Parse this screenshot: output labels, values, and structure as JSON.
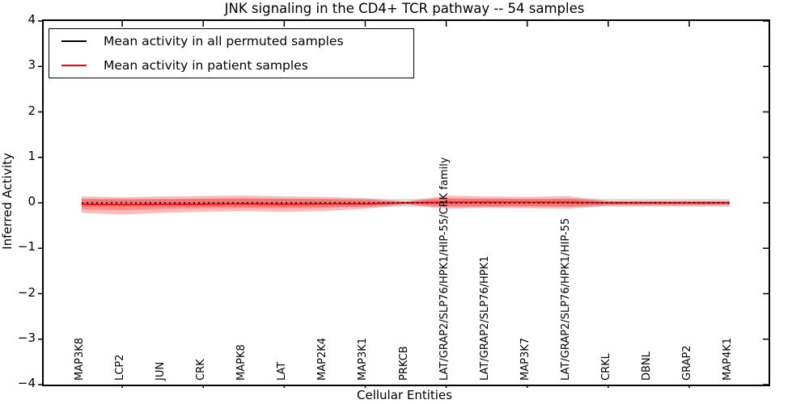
{
  "legend": {
    "position": "upper left",
    "items": [
      {
        "label": "Mean activity in all permuted samples",
        "color": "#000000"
      },
      {
        "label": "Mean activity in patient samples",
        "color": "#ff0000"
      }
    ]
  },
  "chart_data": {
    "type": "line",
    "title": "JNK signaling in the CD4+ TCR pathway -- 54 samples",
    "xlabel": "Cellular Entities",
    "ylabel": "Inferred Activity",
    "ylim": [
      -4,
      4
    ],
    "yticks": [
      4,
      3,
      2,
      1,
      0,
      -1,
      -2,
      -3,
      -4
    ],
    "grid": false,
    "legend_position": "upper left",
    "categories": [
      "MAP3K8",
      "LCP2",
      "JUN",
      "CRK",
      "MAPK8",
      "LAT",
      "MAP2K4",
      "MAP3K1",
      "PRKCB",
      "LAT/GRAP2/SLP76/HPK1/HIP-55/CRK family",
      "LAT/GRAP2/SLP76/HPK1",
      "MAP3K7",
      "LAT/GRAP2/SLP76/HPK1/HIP-55",
      "CRKL",
      "DBNL",
      "GRAP2",
      "MAP4K1"
    ],
    "series": [
      {
        "name": "Mean activity in all permuted samples",
        "color": "#000000",
        "style": "dotted",
        "values": [
          0,
          0,
          0,
          0,
          0,
          0,
          0,
          0,
          0,
          0,
          0,
          0,
          0,
          0,
          0,
          0,
          0
        ]
      },
      {
        "name": "Mean activity in patient samples",
        "color": "#ff0000",
        "style": "solid",
        "values": [
          -0.03,
          -0.04,
          -0.03,
          -0.03,
          -0.02,
          -0.03,
          -0.02,
          -0.02,
          0.0,
          0.01,
          0.01,
          0.01,
          0.01,
          0.0,
          0.0,
          0.0,
          0.0
        ]
      }
    ],
    "bands": [
      {
        "name": "permuted-samples-band",
        "color": "rgba(0,0,0,0.13)",
        "upper": [
          0.09,
          0.09,
          0.09,
          0.09,
          0.09,
          0.09,
          0.09,
          0.09,
          0.09,
          0.09,
          0.09,
          0.09,
          0.09,
          0.09,
          0.09,
          0.09,
          0.09
        ],
        "lower": [
          -0.09,
          -0.09,
          -0.09,
          -0.09,
          -0.09,
          -0.09,
          -0.09,
          -0.09,
          -0.09,
          -0.09,
          -0.09,
          -0.09,
          -0.09,
          -0.09,
          -0.09,
          -0.09,
          -0.09
        ]
      },
      {
        "name": "patient-band-outer",
        "color": "rgba(255,0,0,0.27)",
        "upper": [
          0.14,
          0.12,
          0.14,
          0.15,
          0.16,
          0.14,
          0.13,
          0.1,
          0.03,
          0.16,
          0.14,
          0.13,
          0.15,
          0.04,
          0.04,
          0.04,
          0.04
        ],
        "lower": [
          -0.22,
          -0.26,
          -0.22,
          -0.2,
          -0.18,
          -0.2,
          -0.18,
          -0.13,
          -0.04,
          -0.13,
          -0.11,
          -0.12,
          -0.13,
          -0.06,
          -0.06,
          -0.06,
          -0.06
        ]
      },
      {
        "name": "patient-band-inner",
        "color": "rgba(255,0,0,0.27)",
        "upper": [
          0.08,
          0.07,
          0.08,
          0.09,
          0.1,
          0.09,
          0.08,
          0.06,
          0.015,
          0.1,
          0.09,
          0.08,
          0.09,
          0.025,
          0.025,
          0.025,
          0.025
        ],
        "lower": [
          -0.14,
          -0.16,
          -0.13,
          -0.12,
          -0.11,
          -0.12,
          -0.11,
          -0.08,
          -0.02,
          -0.08,
          -0.07,
          -0.07,
          -0.08,
          -0.04,
          -0.04,
          -0.04,
          -0.04
        ]
      }
    ]
  }
}
